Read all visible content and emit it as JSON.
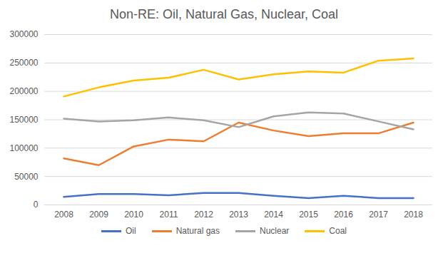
{
  "chart_data": {
    "type": "line",
    "title": "Non-RE: Oil, Natural Gas, Nuclear, Coal",
    "categories": [
      "2008",
      "2009",
      "2010",
      "2011",
      "2012",
      "2013",
      "2014",
      "2015",
      "2016",
      "2017",
      "2018"
    ],
    "series": [
      {
        "name": "Oil",
        "color": "#4472c4",
        "values": [
          14000,
          19000,
          19000,
          17000,
          21000,
          21000,
          16000,
          12000,
          16000,
          12000,
          12000
        ]
      },
      {
        "name": "Natural gas",
        "color": "#ed7d31",
        "values": [
          82000,
          70000,
          103000,
          115000,
          112000,
          145000,
          131000,
          121000,
          126000,
          126000,
          145000
        ]
      },
      {
        "name": "Nuclear",
        "color": "#a5a5a5",
        "values": [
          152000,
          147000,
          149000,
          154000,
          149000,
          137000,
          156000,
          163000,
          161000,
          147000,
          133000
        ]
      },
      {
        "name": "Coal",
        "color": "#ffc000",
        "values": [
          191000,
          207000,
          219000,
          224000,
          238000,
          221000,
          230000,
          235000,
          233000,
          254000,
          258000
        ]
      }
    ],
    "ylim": [
      0,
      300000
    ],
    "yticks": [
      0,
      50000,
      100000,
      150000,
      200000,
      250000,
      300000
    ],
    "grid": true,
    "legend": "bottom"
  }
}
